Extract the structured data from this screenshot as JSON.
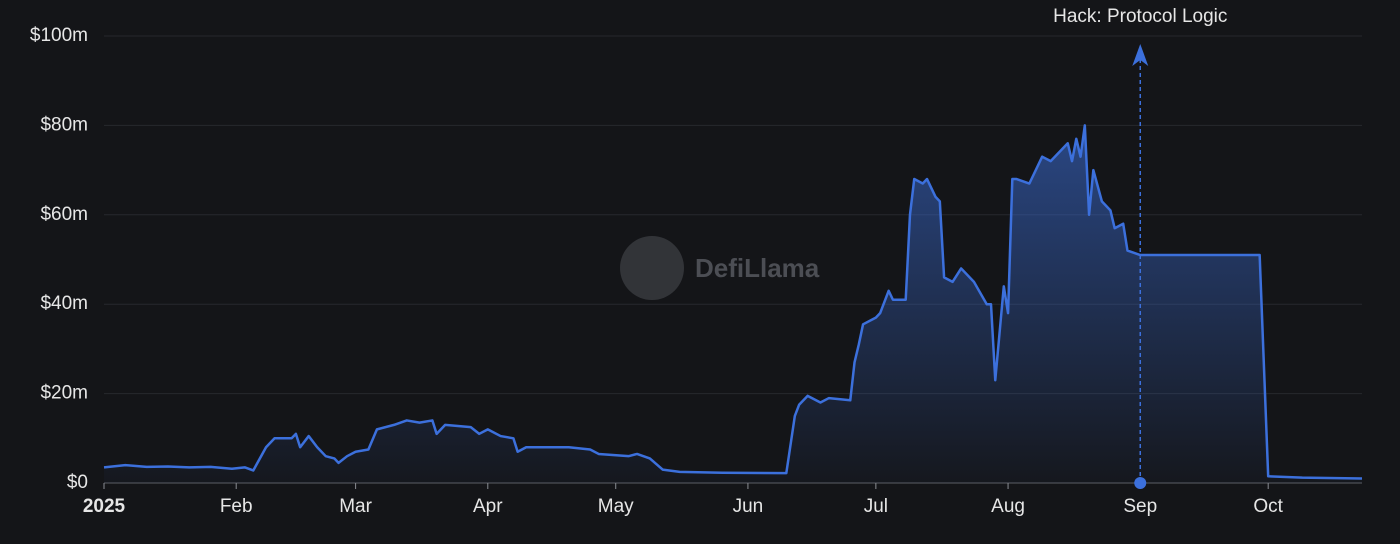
{
  "chart_data": {
    "type": "area",
    "watermark": "DefiLlama",
    "annotation": {
      "x": 243,
      "label": "Hack: Protocol Logic"
    },
    "xlim": [
      0,
      295
    ],
    "xticks": [
      {
        "value": 0,
        "label": "2025"
      },
      {
        "value": 31,
        "label": "Feb"
      },
      {
        "value": 59,
        "label": "Mar"
      },
      {
        "value": 90,
        "label": "Apr"
      },
      {
        "value": 120,
        "label": "May"
      },
      {
        "value": 151,
        "label": "Jun"
      },
      {
        "value": 181,
        "label": "Jul"
      },
      {
        "value": 212,
        "label": "Aug"
      },
      {
        "value": 243,
        "label": "Sep"
      },
      {
        "value": 273,
        "label": "Oct"
      }
    ],
    "ylim": [
      0,
      100
    ],
    "yticks": [
      {
        "value": 0,
        "label": "$0"
      },
      {
        "value": 20,
        "label": "$20m"
      },
      {
        "value": 40,
        "label": "$40m"
      },
      {
        "value": 60,
        "label": "$60m"
      },
      {
        "value": 80,
        "label": "$80m"
      },
      {
        "value": 100,
        "label": "$100m"
      }
    ],
    "grid": true,
    "color": "#3c70dc",
    "x": [
      0,
      5,
      10,
      15,
      20,
      25,
      30,
      33,
      35,
      38,
      40,
      44,
      45,
      46,
      48,
      50,
      52,
      54,
      55,
      57,
      59,
      62,
      64,
      68,
      71,
      74,
      77,
      78,
      80,
      86,
      88,
      90,
      93,
      96,
      97,
      99,
      105,
      109,
      114,
      116,
      123,
      125,
      128,
      131,
      135,
      145,
      160,
      162,
      163,
      165,
      168,
      170,
      175,
      176,
      177,
      178,
      181,
      182,
      184,
      185,
      188,
      189,
      190,
      192,
      193,
      195,
      196,
      197,
      199,
      201,
      204,
      207,
      208,
      209,
      211,
      212,
      213,
      214,
      217,
      220,
      222,
      226,
      227,
      228,
      229,
      230,
      231,
      232,
      234,
      236,
      237,
      239,
      240,
      243,
      271,
      273,
      281,
      295
    ],
    "values": [
      3.5,
      4,
      3.6,
      3.7,
      3.5,
      3.6,
      3.2,
      3.5,
      2.8,
      8,
      10,
      10,
      11,
      8,
      10.5,
      8,
      6,
      5.5,
      4.5,
      6,
      7,
      7.5,
      12,
      13,
      14,
      13.5,
      14,
      11,
      13,
      12.5,
      11,
      12,
      10.5,
      10,
      7,
      8,
      8,
      8,
      7.5,
      6.5,
      6,
      6.5,
      5.5,
      3,
      2.5,
      2.3,
      2.2,
      15,
      17.5,
      19.5,
      18,
      19,
      18.5,
      27,
      31,
      35.5,
      37,
      38,
      43,
      41,
      41,
      60,
      68,
      67,
      68,
      64,
      63,
      46,
      45,
      48,
      45,
      40,
      40,
      23,
      44,
      38,
      68,
      68,
      67,
      73,
      72,
      76,
      72,
      77,
      73,
      80,
      60,
      70,
      63,
      61,
      57,
      58,
      52,
      51,
      51,
      1.5,
      1.2,
      1
    ]
  }
}
